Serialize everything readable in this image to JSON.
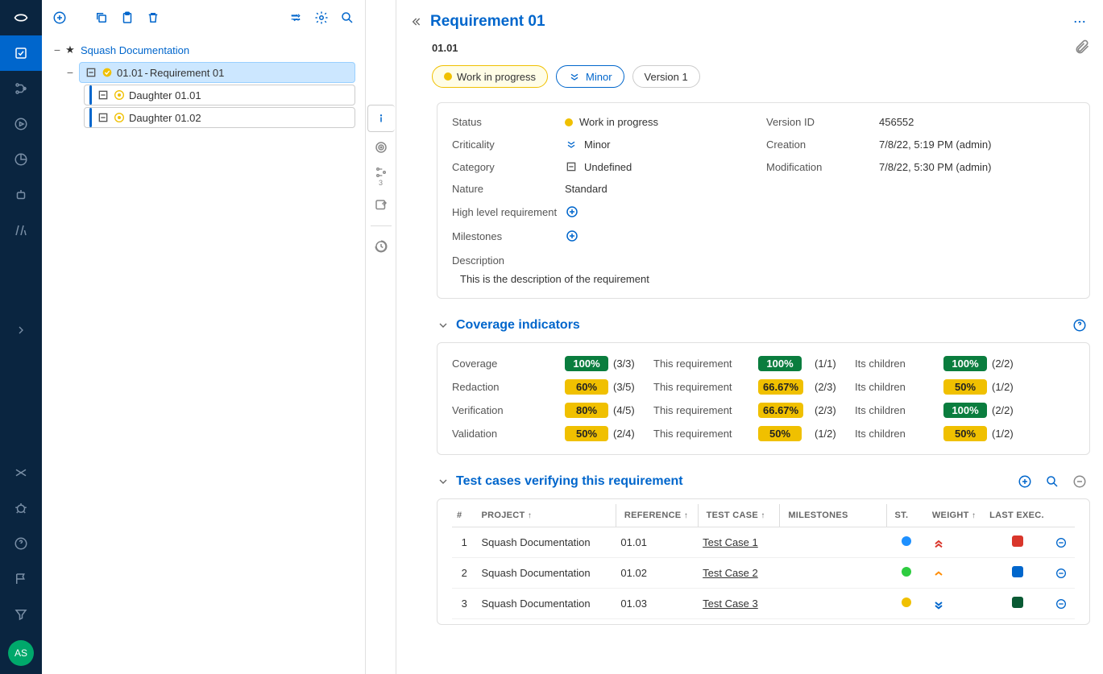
{
  "colors": {
    "primary": "#0066cc",
    "nav_bg": "#0a2540",
    "green": "#0a7d3e",
    "yellow": "#f0c000",
    "red": "#d9362b",
    "darkgreen": "#0a5a34"
  },
  "avatar_initials": "AS",
  "tree": {
    "project": "Squash Documentation",
    "req": {
      "ref": "01.01",
      "name": "Requirement 01"
    },
    "children": [
      {
        "ref": "Daughter 01.01"
      },
      {
        "ref": "Daughter 01.02"
      }
    ]
  },
  "header": {
    "title": "Requirement 01",
    "ref": "01.01",
    "status_label": "Work in progress",
    "criticality_label": "Minor",
    "version_label": "Version 1"
  },
  "info": {
    "status_l": "Status",
    "status_v": "Work in progress",
    "criticality_l": "Criticality",
    "criticality_v": "Minor",
    "category_l": "Category",
    "category_v": "Undefined",
    "nature_l": "Nature",
    "nature_v": "Standard",
    "hlr_l": "High level requirement",
    "milestones_l": "Milestones",
    "version_id_l": "Version ID",
    "version_id_v": "456552",
    "creation_l": "Creation",
    "creation_v": "7/8/22, 5:19 PM (admin)",
    "modification_l": "Modification",
    "modification_v": "7/8/22, 5:30 PM (admin)",
    "description_l": "Description",
    "description_v": "This is the description of the requirement"
  },
  "coverage": {
    "title": "Coverage indicators",
    "this_req": "This requirement",
    "its_children": "Its children",
    "rows": [
      {
        "label": "Coverage",
        "total_pct": "100%",
        "total_ratio": "(3/3)",
        "total_color": "green",
        "req_pct": "100%",
        "req_ratio": "(1/1)",
        "req_color": "green",
        "child_pct": "100%",
        "child_ratio": "(2/2)",
        "child_color": "green"
      },
      {
        "label": "Redaction",
        "total_pct": "60%",
        "total_ratio": "(3/5)",
        "total_color": "yellow",
        "req_pct": "66.67%",
        "req_ratio": "(2/3)",
        "req_color": "yellow",
        "child_pct": "50%",
        "child_ratio": "(1/2)",
        "child_color": "yellow"
      },
      {
        "label": "Verification",
        "total_pct": "80%",
        "total_ratio": "(4/5)",
        "total_color": "yellow",
        "req_pct": "66.67%",
        "req_ratio": "(2/3)",
        "req_color": "yellow",
        "child_pct": "100%",
        "child_ratio": "(2/2)",
        "child_color": "green"
      },
      {
        "label": "Validation",
        "total_pct": "50%",
        "total_ratio": "(2/4)",
        "total_color": "yellow",
        "req_pct": "50%",
        "req_ratio": "(1/2)",
        "req_color": "yellow",
        "child_pct": "50%",
        "child_ratio": "(1/2)",
        "child_color": "yellow"
      }
    ]
  },
  "testcases": {
    "title": "Test cases verifying this requirement",
    "cols": {
      "num": "#",
      "project": "PROJECT",
      "reference": "REFERENCE",
      "testcase": "TEST CASE",
      "milestones": "MILESTONES",
      "st": "ST.",
      "weight": "WEIGHT",
      "lastexec": "LAST EXEC."
    },
    "rows": [
      {
        "n": "1",
        "project": "Squash Documentation",
        "ref": "01.01",
        "name": "Test Case 1",
        "st": "blue",
        "weight": "high-red",
        "exec": "red"
      },
      {
        "n": "2",
        "project": "Squash Documentation",
        "ref": "01.02",
        "name": "Test Case 2",
        "st": "green",
        "weight": "med-orange",
        "exec": "blue"
      },
      {
        "n": "3",
        "project": "Squash Documentation",
        "ref": "01.03",
        "name": "Test Case 3",
        "st": "yellow",
        "weight": "low-blue",
        "exec": "darkgreen"
      }
    ]
  }
}
